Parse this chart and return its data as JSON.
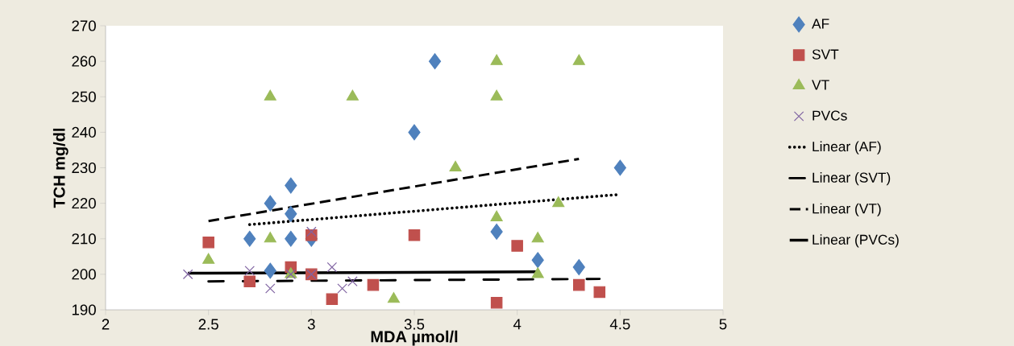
{
  "chart_data": {
    "type": "scatter",
    "xlabel": "MDA µmol/l",
    "ylabel": "TCH mg/dl",
    "xlim": [
      2,
      5
    ],
    "ylim": [
      190,
      270
    ],
    "xticks": [
      2,
      2.5,
      3,
      3.5,
      4,
      4.5,
      5
    ],
    "yticks": [
      190,
      200,
      210,
      220,
      230,
      240,
      250,
      260,
      270
    ],
    "grid": false,
    "legend": "right",
    "series": [
      {
        "name": "AF",
        "color": "#4f81bd",
        "marker": "diamond",
        "x": [
          2.7,
          2.8,
          2.8,
          2.9,
          2.9,
          2.9,
          3.0,
          3.5,
          3.6,
          3.9,
          4.1,
          4.3,
          4.5
        ],
        "values": [
          210,
          220,
          201,
          225,
          217,
          210,
          210,
          240,
          260,
          212,
          204,
          202,
          230
        ]
      },
      {
        "name": "SVT",
        "color": "#c0504d",
        "marker": "square",
        "x": [
          2.5,
          2.7,
          2.9,
          3.0,
          3.0,
          3.1,
          3.3,
          3.5,
          3.9,
          4.0,
          4.3,
          4.4
        ],
        "values": [
          209,
          198,
          202,
          200,
          211,
          193,
          197,
          211,
          192,
          208,
          197,
          195
        ]
      },
      {
        "name": "VT",
        "color": "#9bbb59",
        "marker": "triangle",
        "x": [
          2.5,
          2.8,
          2.8,
          2.9,
          3.2,
          3.4,
          3.7,
          3.9,
          3.9,
          3.9,
          4.1,
          4.1,
          4.2,
          4.3
        ],
        "values": [
          204,
          250,
          210,
          200,
          250,
          193,
          230,
          260,
          250,
          216,
          210,
          200,
          220,
          260
        ]
      },
      {
        "name": "PVCs",
        "color": "#8064a2",
        "marker": "cross",
        "x": [
          2.4,
          2.7,
          2.8,
          2.9,
          3.0,
          3.0,
          3.1,
          3.15,
          3.2
        ],
        "values": [
          200,
          201,
          196,
          200,
          200,
          212,
          202,
          196,
          198
        ]
      },
      {
        "name": "Linear (AF)",
        "type": "line",
        "color": "#000000",
        "line_style": "dotted",
        "x": [
          2.7,
          4.5
        ],
        "values": [
          214,
          222.5
        ]
      },
      {
        "name": "Linear (SVT)",
        "type": "line",
        "color": "#000000",
        "line_style": "dashdotdot",
        "x": [
          2.5,
          4.4
        ],
        "values": [
          198,
          198.7
        ]
      },
      {
        "name": "Linear (VT)",
        "type": "line",
        "color": "#000000",
        "line_style": "dashed",
        "x": [
          2.5,
          4.3
        ],
        "values": [
          215,
          232.5
        ]
      },
      {
        "name": "Linear (PVCs)",
        "type": "line",
        "color": "#000000",
        "line_style": "solid",
        "x": [
          2.4,
          4.1
        ],
        "values": [
          200.3,
          200.7
        ]
      }
    ]
  }
}
